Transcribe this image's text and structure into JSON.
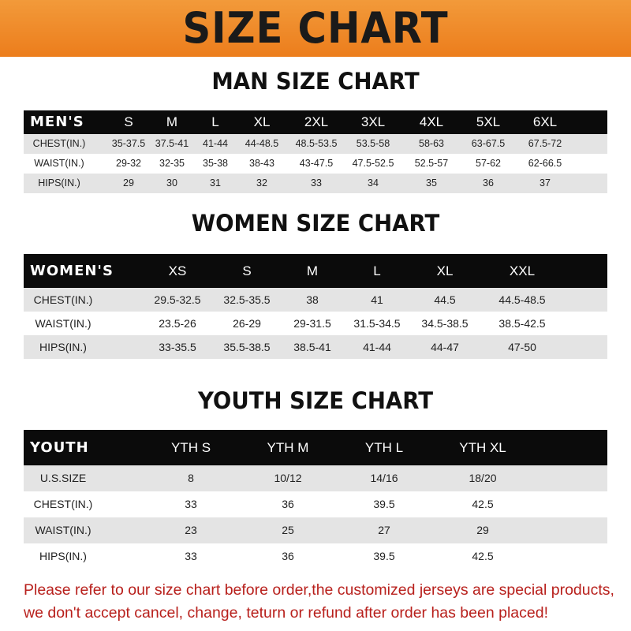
{
  "banner": {
    "title": "SIZE CHART",
    "color": "#ef8a2a"
  },
  "men": {
    "title": "MAN SIZE CHART",
    "header": [
      "MEN'S",
      "S",
      "M",
      "L",
      "XL",
      "2XL",
      "3XL",
      "4XL",
      "5XL",
      "6XL"
    ],
    "rows": [
      [
        "CHEST(IN.)",
        "35-37.5",
        "37.5-41",
        "41-44",
        "44-48.5",
        "48.5-53.5",
        "53.5-58",
        "58-63",
        "63-67.5",
        "67.5-72"
      ],
      [
        "WAIST(IN.)",
        "29-32",
        "32-35",
        "35-38",
        "38-43",
        "43-47.5",
        "47.5-52.5",
        "52.5-57",
        "57-62",
        "62-66.5"
      ],
      [
        "HIPS(IN.)",
        "29",
        "30",
        "31",
        "32",
        "33",
        "34",
        "35",
        "36",
        "37"
      ]
    ]
  },
  "women": {
    "title": "WOMEN SIZE CHART",
    "header": [
      "WOMEN'S",
      "XS",
      "S",
      "M",
      "L",
      "XL",
      "XXL"
    ],
    "rows": [
      [
        "CHEST(IN.)",
        "29.5-32.5",
        "32.5-35.5",
        "38",
        "41",
        "44.5",
        "44.5-48.5"
      ],
      [
        "WAIST(IN.)",
        "23.5-26",
        "26-29",
        "29-31.5",
        "31.5-34.5",
        "34.5-38.5",
        "38.5-42.5"
      ],
      [
        "HIPS(IN.)",
        "33-35.5",
        "35.5-38.5",
        "38.5-41",
        "41-44",
        "44-47",
        "47-50"
      ]
    ]
  },
  "youth": {
    "title": "YOUTH SIZE CHART",
    "header": [
      "YOUTH",
      "YTH S",
      "YTH M",
      "YTH L",
      "YTH XL"
    ],
    "rows": [
      [
        "U.S.SIZE",
        "8",
        "10/12",
        "14/16",
        "18/20"
      ],
      [
        "CHEST(IN.)",
        "33",
        "36",
        "39.5",
        "42.5"
      ],
      [
        "WAIST(IN.)",
        "23",
        "25",
        "27",
        "29"
      ],
      [
        "HIPS(IN.)",
        "33",
        "36",
        "39.5",
        "42.5"
      ]
    ]
  },
  "note": {
    "line1": "Please refer to our size chart before order,the customized jerseys are special products,",
    "line2": "we don't accept cancel, change, teturn or refund after order has been placed!"
  }
}
